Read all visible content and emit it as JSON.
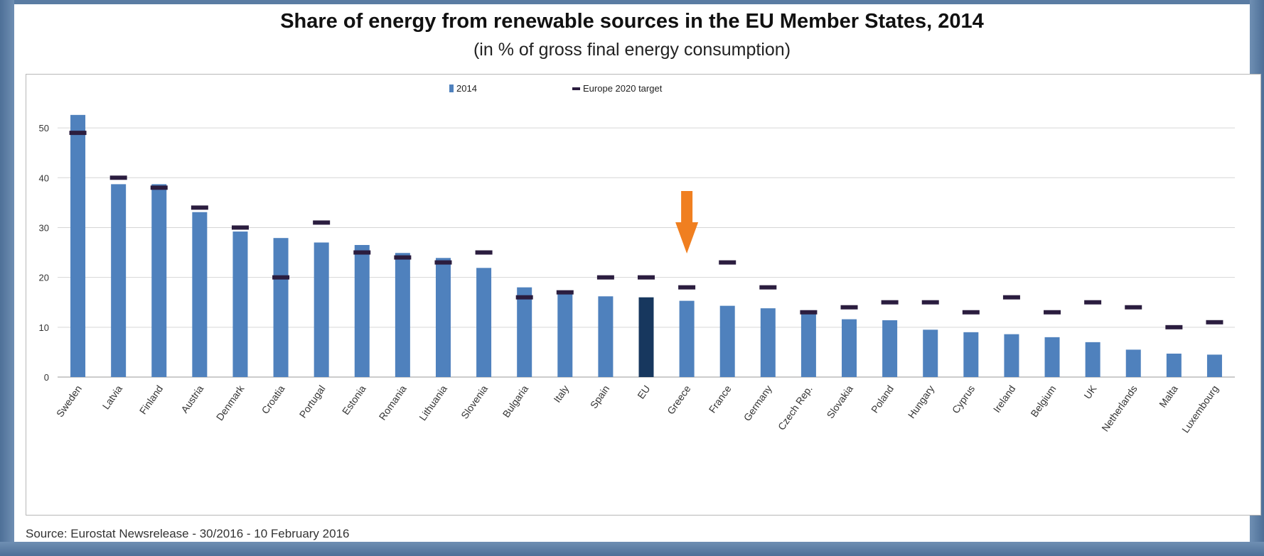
{
  "title": "Share of energy from renewable sources in the EU Member States, 2014",
  "subtitle": "(in % of gross final energy consumption)",
  "source": "Source: Eurostat Newsrelease - 30/2016 - 10 February 2016",
  "colors": {
    "bar": "#4f81bd",
    "highlight_bar": "#17375e",
    "target": "#2b1d3f",
    "arrow": "#f07f20",
    "grid": "#d6d6d6"
  },
  "chart_data": {
    "type": "bar",
    "title": "Share of energy from renewable sources in the EU Member States, 2014",
    "subtitle": "(in % of gross final energy consumption)",
    "categories": [
      "Sweden",
      "Latvia",
      "Finland",
      "Austria",
      "Denmark",
      "Croatia",
      "Portugal",
      "Estonia",
      "Romania",
      "Lithuania",
      "Slovenia",
      "Bulgaria",
      "Italy",
      "Spain",
      "EU",
      "Greece",
      "France",
      "Germany",
      "Czech Rep.",
      "Slovakia",
      "Poland",
      "Hungary",
      "Cyprus",
      "Ireland",
      "Belgium",
      "UK",
      "Netherlands",
      "Malta",
      "Luxembourg"
    ],
    "series": [
      {
        "name": "2014",
        "values": [
          52.6,
          38.7,
          38.7,
          33.1,
          29.2,
          27.9,
          27.0,
          26.5,
          24.9,
          23.9,
          21.9,
          18.0,
          17.1,
          16.2,
          16.0,
          15.3,
          14.3,
          13.8,
          13.4,
          11.6,
          11.4,
          9.5,
          9.0,
          8.6,
          8.0,
          7.0,
          5.5,
          4.7,
          4.5
        ]
      },
      {
        "name": "Europe 2020 target",
        "values": [
          49,
          40,
          38,
          34,
          30,
          20,
          31,
          25,
          24,
          23,
          25,
          16,
          17,
          20,
          20,
          18,
          23,
          18,
          13,
          14,
          15,
          15,
          13,
          16,
          13,
          15,
          14,
          10,
          11
        ]
      }
    ],
    "highlight_category": "EU",
    "arrow_category": "Greece",
    "yticks": [
      0,
      10,
      20,
      30,
      40,
      50
    ],
    "ylim": [
      0,
      55
    ],
    "grid": true,
    "legend_position": "top-center"
  }
}
